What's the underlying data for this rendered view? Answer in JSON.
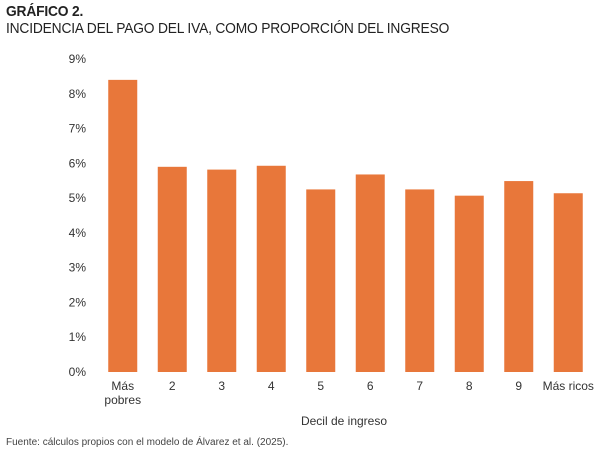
{
  "figure": {
    "label": "GRÁFICO 2.",
    "title": "INCIDENCIA DEL PAGO DEL IVA, COMO PROPORCIÓN DEL INGRESO",
    "source": "Fuente: cálculos propios con el modelo de Álvarez et al. (2025)."
  },
  "chart_data": {
    "type": "bar",
    "categories": [
      "Más pobres",
      "2",
      "3",
      "4",
      "5",
      "6",
      "7",
      "8",
      "9",
      "Más ricos"
    ],
    "values": [
      8.4,
      5.9,
      5.82,
      5.93,
      5.25,
      5.68,
      5.25,
      5.07,
      5.49,
      5.14
    ],
    "xlabel": "Decil de ingreso",
    "ylabel": "",
    "ylim": [
      0,
      9
    ],
    "yticks": [
      "0%",
      "1%",
      "2%",
      "3%",
      "4%",
      "5%",
      "6%",
      "7%",
      "8%",
      "9%"
    ],
    "bar_color": "#E8773A",
    "grid": false
  }
}
